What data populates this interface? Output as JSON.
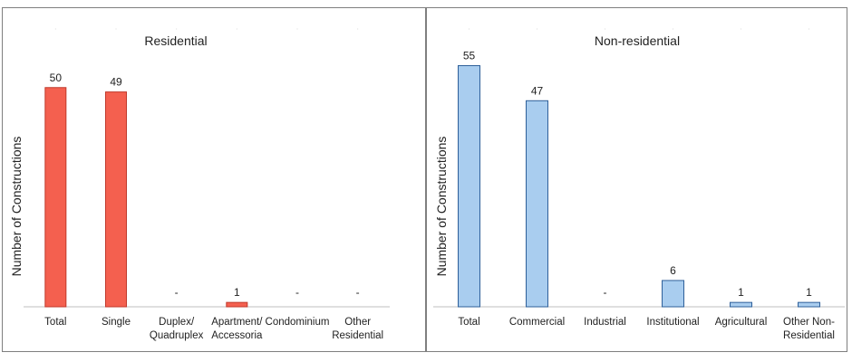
{
  "chart_data": [
    {
      "type": "bar",
      "title": "Residential",
      "ylabel": "Number of Constructions",
      "xlabel": "",
      "color": "#f4604f",
      "stroke": "#c0392b",
      "categories": [
        "Total",
        "Single",
        "Duplex/\nQuadruplex",
        "Apartment/\nAccessoria",
        "Condominium",
        "Other\nResidential"
      ],
      "values": [
        50,
        49,
        null,
        1,
        null,
        null
      ],
      "value_labels": [
        "50",
        "49",
        "-",
        "1",
        "-",
        "-"
      ],
      "ylim": [
        0,
        58
      ]
    },
    {
      "type": "bar",
      "title": "Non-residential",
      "ylabel": "Number of Constructions",
      "xlabel": "",
      "color": "#a9cdef",
      "stroke": "#2e5f99",
      "categories": [
        "Total",
        "Commercial",
        "Industrial",
        "Institutional",
        "Agricultural",
        "Other Non-\nResidential"
      ],
      "values": [
        55,
        47,
        null,
        6,
        1,
        1
      ],
      "value_labels": [
        "55",
        "47",
        "-",
        "6",
        "1",
        "1"
      ],
      "ylim": [
        0,
        58
      ]
    }
  ]
}
